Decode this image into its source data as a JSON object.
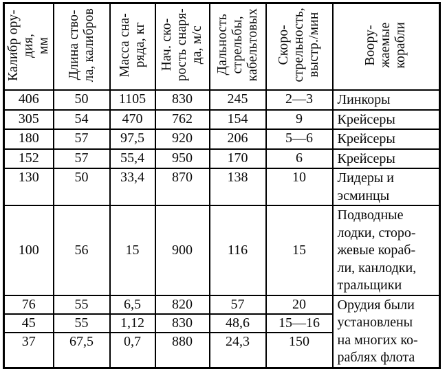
{
  "page": {
    "background_color": "#ffffff",
    "text_color": "#0a0a0a",
    "border_color": "#000000",
    "description": "Scanned book table of Soviet naval gun characteristics"
  },
  "table": {
    "columns": [
      "Калибр ору-\nдия,\nмм",
      "Длина ство-\nла, калибров",
      "Масса сна-\nряда, кг",
      "Нач. ско-\nрость снаря-\nда, м/с",
      "Дальность\nстрельбы,\nкабельтовых",
      "Скоро-\nстрельность,\nвыстр./мин",
      "Воору-\nжаемые\nкорабли"
    ],
    "rows": [
      {
        "caliber": "406",
        "barrel_length": "50",
        "shell_mass": "1105",
        "muzzle_velocity": "830",
        "range": "245",
        "rate_of_fire": "2—3",
        "ships": "Линкоры"
      },
      {
        "caliber": "305",
        "barrel_length": "54",
        "shell_mass": "470",
        "muzzle_velocity": "762",
        "range": "154",
        "rate_of_fire": "9",
        "ships": "Крейсеры"
      },
      {
        "caliber": "180",
        "barrel_length": "57",
        "shell_mass": "97,5",
        "muzzle_velocity": "920",
        "range": "206",
        "rate_of_fire": "5—6",
        "ships": "Крейсеры"
      },
      {
        "caliber": "152",
        "barrel_length": "57",
        "shell_mass": "55,4",
        "muzzle_velocity": "950",
        "range": "170",
        "rate_of_fire": "6",
        "ships": "Крейсеры"
      },
      {
        "caliber": "130",
        "barrel_length": "50",
        "shell_mass": "33,4",
        "muzzle_velocity": "870",
        "range": "138",
        "rate_of_fire": "10",
        "ships": "Лидеры и\nэсминцы"
      },
      {
        "caliber": "100",
        "barrel_length": "56",
        "shell_mass": "15",
        "muzzle_velocity": "900",
        "range": "116",
        "rate_of_fire": "15",
        "ships": "Подводные\nлодки, сторо-\nжевые кораб-\nли, канлодки,\nтральщики"
      },
      {
        "caliber": "76",
        "barrel_length": "55",
        "shell_mass": "6,5",
        "muzzle_velocity": "820",
        "range": "57",
        "rate_of_fire": "20",
        "ships": "Орудия были\nустановлены\nна многих ко-\nраблях флота"
      },
      {
        "caliber": "45",
        "barrel_length": "55",
        "shell_mass": "1,12",
        "muzzle_velocity": "830",
        "range": "48,6",
        "rate_of_fire": "15—16"
      },
      {
        "caliber": "37",
        "barrel_length": "67,5",
        "shell_mass": "0,7",
        "muzzle_velocity": "880",
        "range": "24,3",
        "rate_of_fire": "150"
      }
    ]
  }
}
